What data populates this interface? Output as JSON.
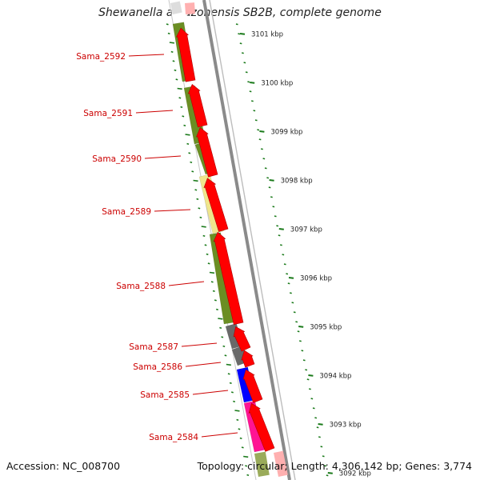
{
  "title": "Shewanella amazonensis SB2B, complete genome",
  "footer": {
    "accession": "Accession: NC_008700",
    "topology": "Topology: circular; Length: 4,306,142 bp; Genes: 3,774"
  },
  "colors": {
    "cds_forward": "#ff0000",
    "gene_olive": "#6b8e23",
    "gene_khaki": "#f0e68c",
    "gene_gray": "#696969",
    "gene_blue": "#0000ff",
    "gene_magenta": "#ff1493",
    "gene_label": "#cc0000",
    "tick": "#1a7a1a",
    "backbone": "#8a8a8a"
  },
  "scale_ticks": [
    {
      "label": "3101 kbp"
    },
    {
      "label": "3100 kbp"
    },
    {
      "label": "3099 kbp"
    },
    {
      "label": "3098 kbp"
    },
    {
      "label": "3097 kbp"
    },
    {
      "label": "3096 kbp"
    },
    {
      "label": "3095 kbp"
    },
    {
      "label": "3094 kbp"
    },
    {
      "label": "3093 kbp"
    },
    {
      "label": "3092 kbp"
    }
  ],
  "genes": [
    {
      "name": "Sama_2592",
      "color": "#6b8e23"
    },
    {
      "name": "Sama_2591",
      "color": "#6b8e23"
    },
    {
      "name": "Sama_2590",
      "color": "#6b8e23"
    },
    {
      "name": "Sama_2589",
      "color": "#f0e68c"
    },
    {
      "name": "Sama_2588",
      "color": "#6b8e23"
    },
    {
      "name": "Sama_2587",
      "color": "#696969"
    },
    {
      "name": "Sama_2586",
      "color": "#696969"
    },
    {
      "name": "Sama_2585",
      "color": "#0000ff"
    },
    {
      "name": "Sama_2584",
      "color": "#ff1493"
    }
  ]
}
